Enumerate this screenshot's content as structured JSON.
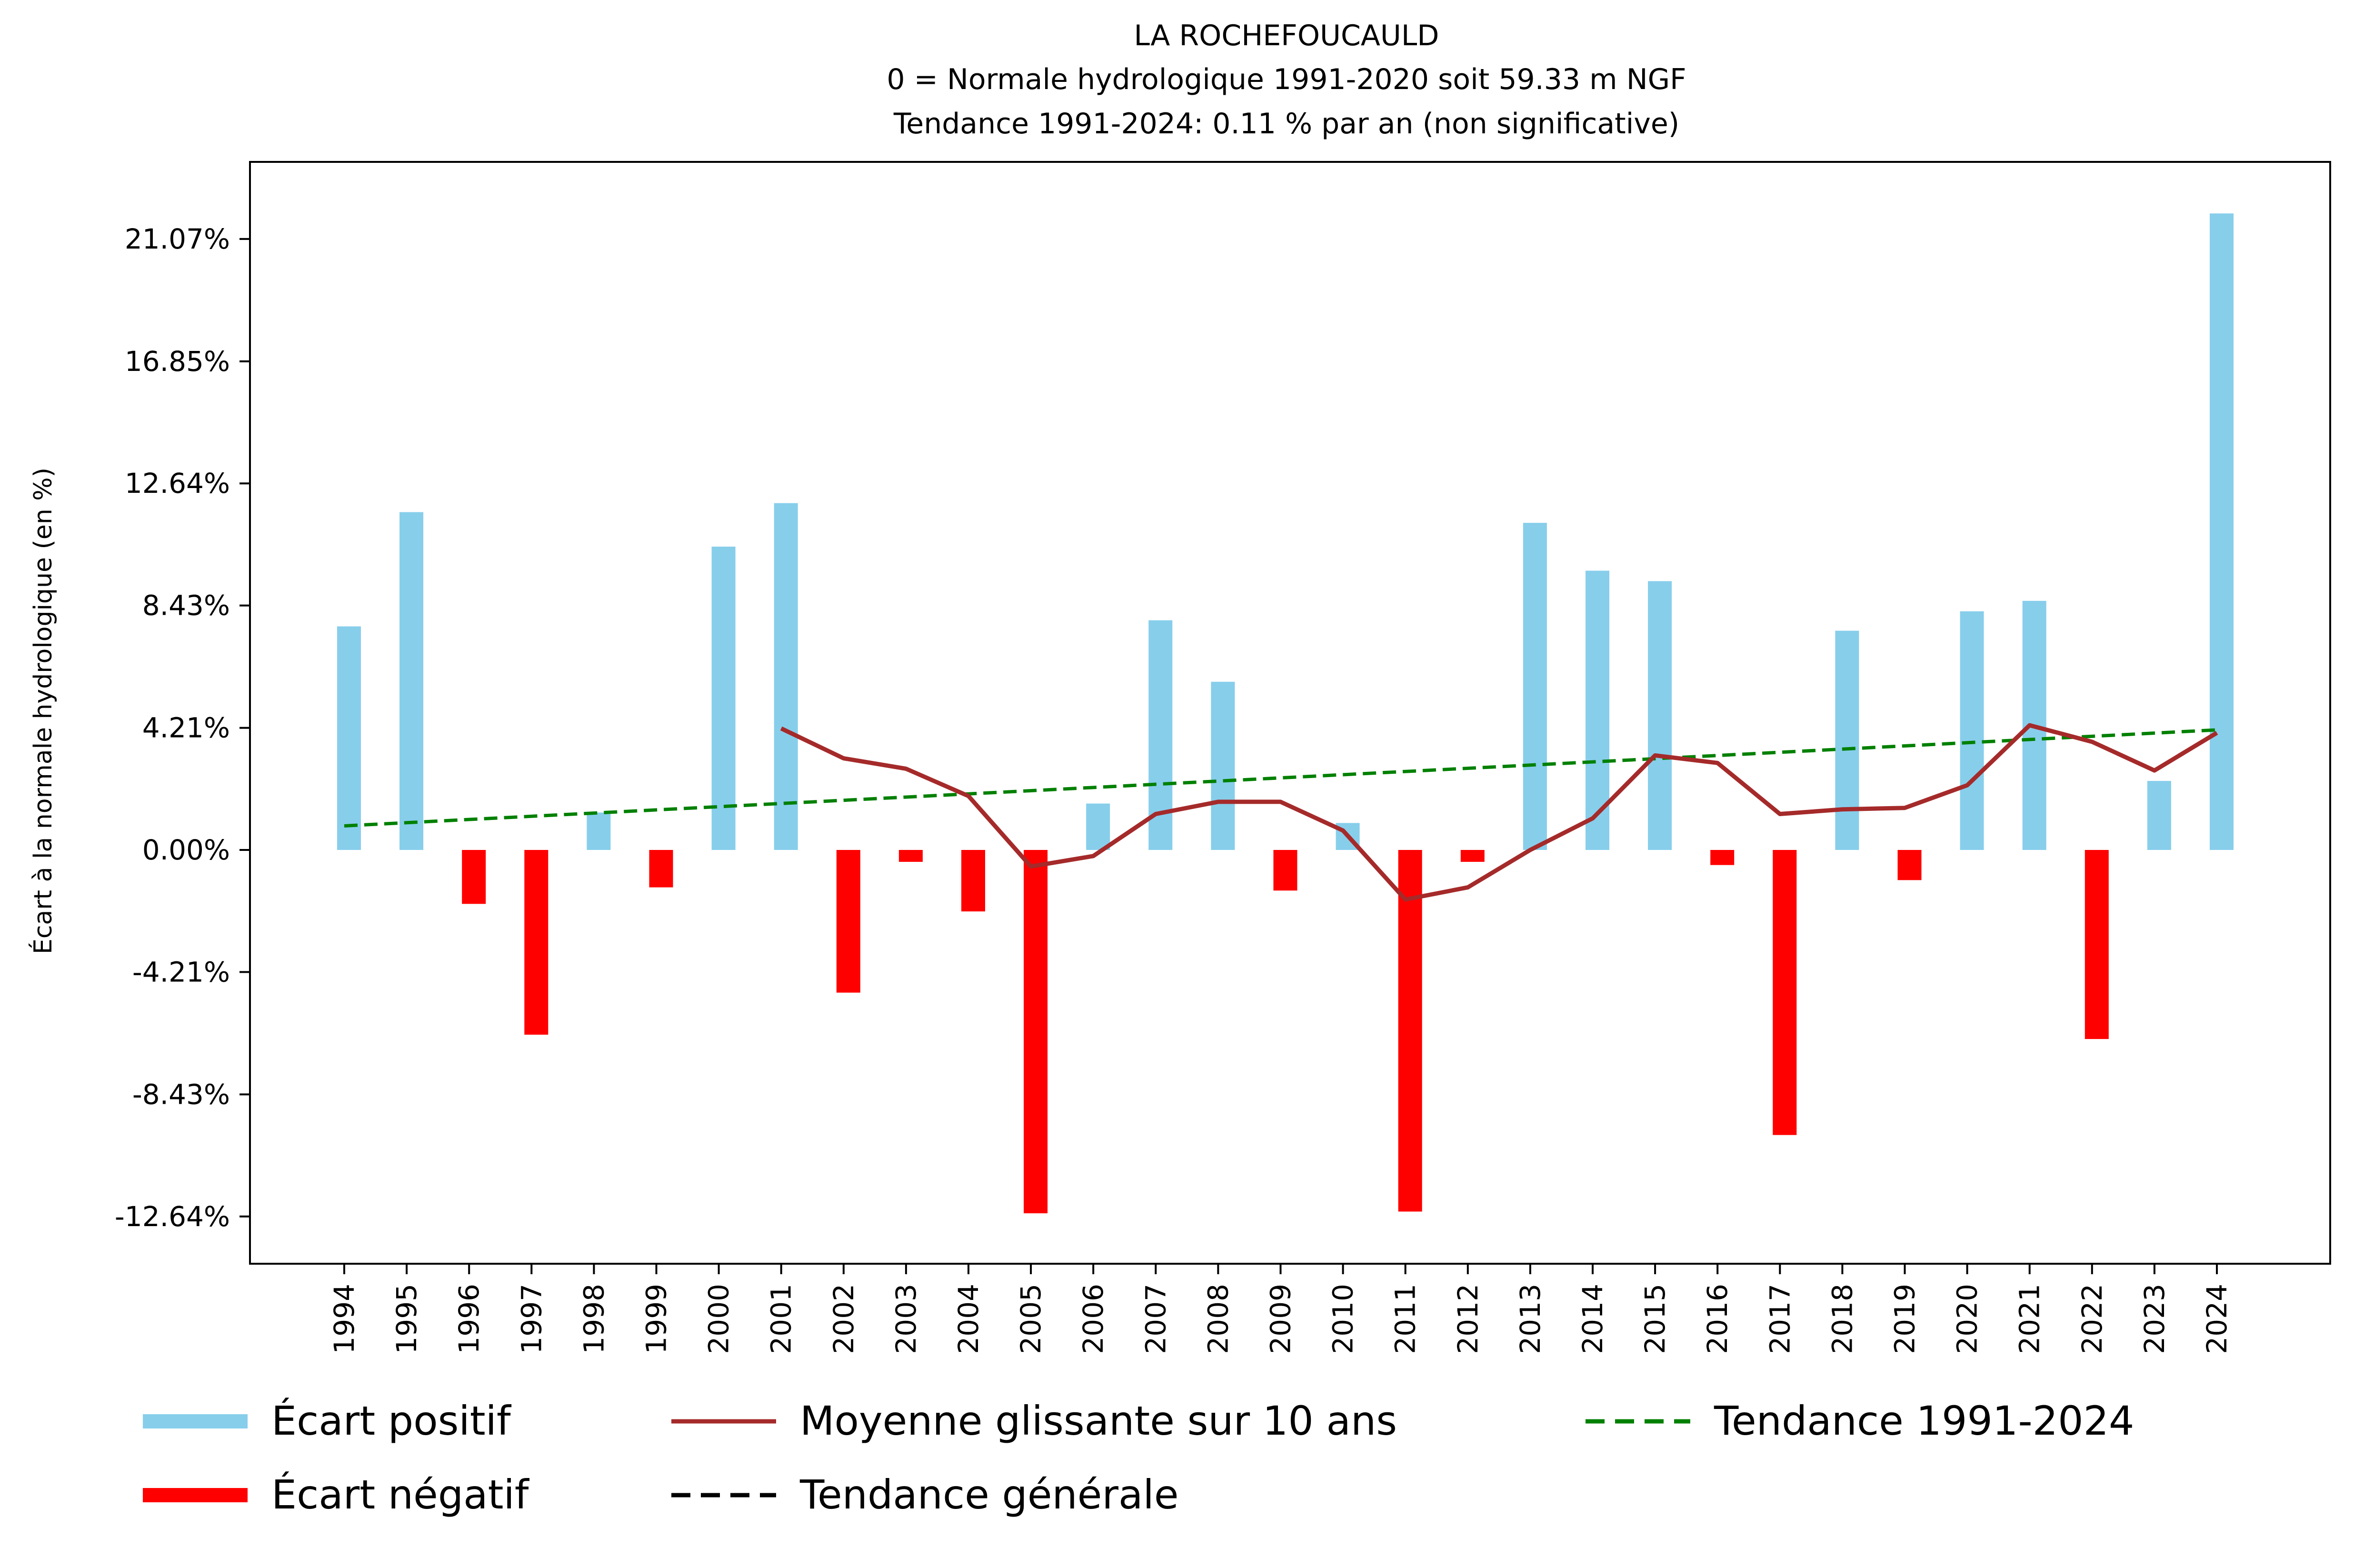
{
  "chart_data": {
    "type": "bar",
    "title_lines": [
      "LA ROCHEFOUCAULD",
      "0 = Normale hydrologique 1991-2020 soit 59.33 m NGF",
      "Tendance 1991-2024: 0.11 % par an (non significative)"
    ],
    "xlabel": "",
    "ylabel": "Écart à la normale hydrologique (en %)",
    "ylim": [
      -14.3,
      23.5
    ],
    "yticks": [
      -12.64,
      -8.43,
      -4.21,
      0.0,
      4.21,
      8.43,
      12.64,
      16.85,
      21.07
    ],
    "ytick_labels": [
      "-12.64%",
      "-8.43%",
      "-4.21%",
      "0.00%",
      "4.21%",
      "8.43%",
      "12.64%",
      "16.85%",
      "21.07%"
    ],
    "categories": [
      "1994",
      "1995",
      "1996",
      "1997",
      "1998",
      "1999",
      "2000",
      "2001",
      "2002",
      "2003",
      "2004",
      "2005",
      "2006",
      "2007",
      "2008",
      "2009",
      "2010",
      "2011",
      "2012",
      "2013",
      "2014",
      "2015",
      "2016",
      "2017",
      "2018",
      "2019",
      "2020",
      "2021",
      "2022",
      "2023",
      "2024"
    ],
    "values": [
      7.71,
      11.65,
      -1.86,
      -6.37,
      1.29,
      -1.29,
      10.46,
      11.96,
      -4.92,
      -0.41,
      -2.12,
      -12.53,
      1.6,
      7.92,
      5.8,
      -1.4,
      0.93,
      -12.47,
      -0.41,
      11.28,
      9.63,
      9.27,
      -0.52,
      -9.83,
      7.56,
      -1.04,
      8.23,
      8.59,
      -6.52,
      2.38,
      21.95
    ],
    "moving_average": {
      "name": "Moyenne glissante sur 10 ans",
      "start": "2001",
      "values": [
        4.19,
        3.16,
        2.8,
        1.86,
        -0.57,
        -0.21,
        1.24,
        1.66,
        1.66,
        0.67,
        -1.71,
        -1.29,
        0.0,
        1.09,
        3.26,
        3.0,
        1.24,
        1.4,
        1.45,
        2.23,
        4.3,
        3.73,
        2.74,
        4.04
      ]
    },
    "trend": {
      "name": "Tendance 1991-2024",
      "start_value": 0.83,
      "end_value": 4.14
    },
    "colors": {
      "positive": "#87CEEB",
      "negative": "#FF0000",
      "moving_average": "#A52A2A",
      "trend": "#008000",
      "general_trend": "#000000"
    },
    "legend": {
      "placement": "bottom",
      "entries": [
        {
          "label": "Écart positif",
          "kind": "bar",
          "color": "#87CEEB"
        },
        {
          "label": "Écart négatif",
          "kind": "bar",
          "color": "#FF0000"
        },
        {
          "label": "Moyenne glissante sur 10 ans",
          "kind": "line",
          "color": "#A52A2A"
        },
        {
          "label": "Tendance générale",
          "kind": "dash",
          "color": "#000000"
        },
        {
          "label": "Tendance 1991-2024",
          "kind": "dash",
          "color": "#008000"
        }
      ]
    }
  }
}
